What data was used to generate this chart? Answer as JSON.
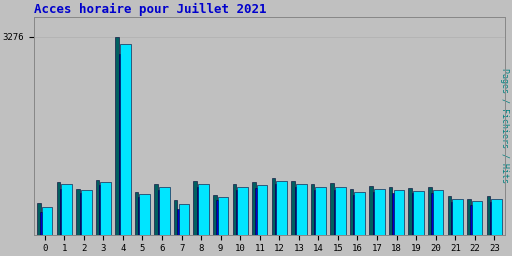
{
  "title": "Acces horaire pour Juillet 2021",
  "title_color": "#0000cc",
  "ylabel_right": "Pages / Fichiers / Hits",
  "ylabel_right_color": "#008080",
  "background_color": "#c0c0c0",
  "plot_bg_color": "#c0c0c0",
  "grid_color": "#b0b0b0",
  "ytick_label": "3276",
  "hours": [
    0,
    1,
    2,
    3,
    4,
    5,
    6,
    7,
    8,
    9,
    10,
    11,
    12,
    13,
    14,
    15,
    16,
    17,
    18,
    19,
    20,
    21,
    22,
    23
  ],
  "pages": [
    380,
    760,
    690,
    820,
    2980,
    620,
    740,
    430,
    790,
    570,
    730,
    770,
    840,
    790,
    730,
    730,
    660,
    700,
    690,
    680,
    690,
    540,
    490,
    540
  ],
  "fichiers": [
    520,
    870,
    760,
    910,
    3276,
    710,
    830,
    570,
    890,
    660,
    830,
    870,
    940,
    890,
    830,
    860,
    750,
    810,
    790,
    770,
    790,
    630,
    590,
    630
  ],
  "hits": [
    460,
    830,
    730,
    870,
    3150,
    670,
    790,
    510,
    840,
    620,
    780,
    820,
    890,
    840,
    780,
    780,
    700,
    760,
    740,
    720,
    740,
    590,
    550,
    590
  ],
  "bar_color_pages": "#0000cc",
  "bar_color_fichiers": "#006060",
  "bar_color_hits": "#00e5ff",
  "bar_edge_color": "#000033",
  "ylim": [
    0,
    3600
  ],
  "yticks": [
    3276
  ],
  "figsize": [
    5.12,
    2.56
  ],
  "dpi": 100
}
